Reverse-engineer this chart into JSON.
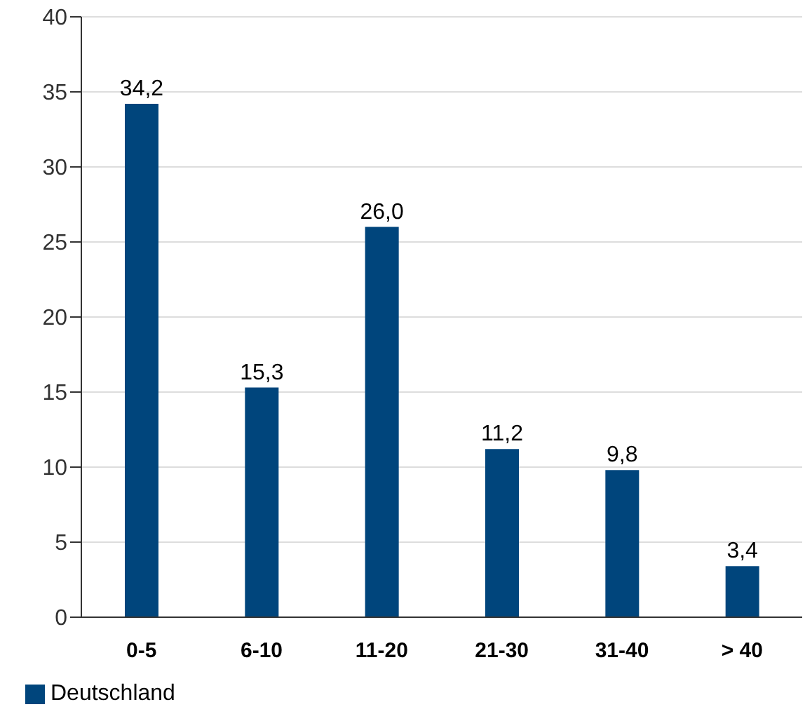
{
  "chart_data": {
    "type": "bar",
    "categories": [
      "0-5",
      "6-10",
      "11-20",
      "21-30",
      "31-40",
      "> 40"
    ],
    "series": [
      {
        "name": "Deutschland",
        "color": "#00457c",
        "values": [
          34.2,
          15.3,
          26.0,
          11.2,
          9.8,
          3.4
        ],
        "value_labels": [
          "34,2",
          "15,3",
          "26,0",
          "11,2",
          "9,8",
          "3,4"
        ]
      }
    ],
    "ylim": [
      0,
      40
    ],
    "yticks": [
      0,
      5,
      10,
      15,
      20,
      25,
      30,
      35,
      40
    ],
    "grid": "y",
    "legend": "bottom left"
  }
}
